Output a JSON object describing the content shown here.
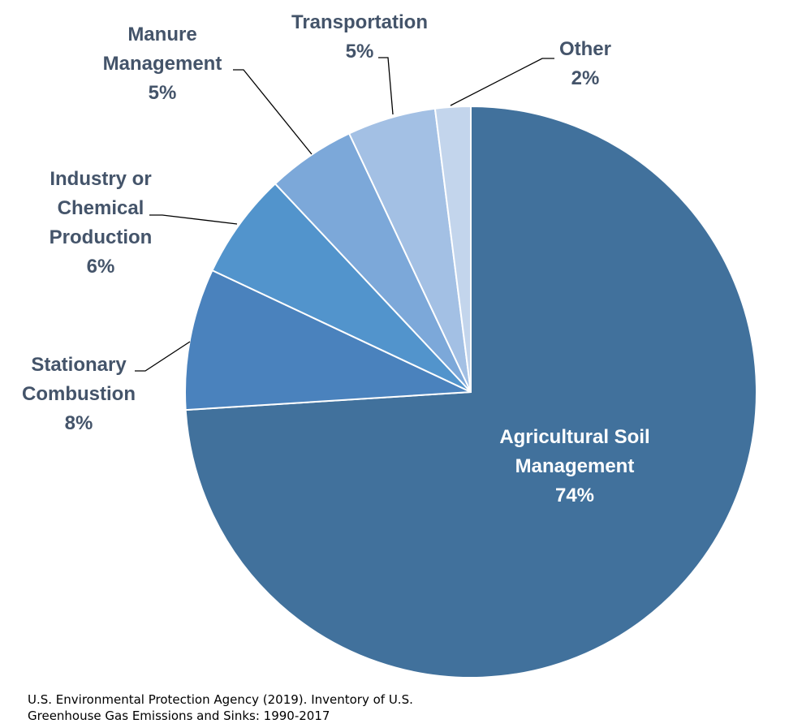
{
  "chart_data": {
    "type": "pie",
    "slices": [
      {
        "label_lines": [
          "Agricultural Soil",
          "Management"
        ],
        "value": 74,
        "value_label": "74%",
        "color": "#41719c"
      },
      {
        "label_lines": [
          "Stationary",
          "Combustion"
        ],
        "value": 8,
        "value_label": "8%",
        "color": "#4a82bd"
      },
      {
        "label_lines": [
          "Industry or",
          "Chemical",
          "Production"
        ],
        "value": 6,
        "value_label": "6%",
        "color": "#5294cc"
      },
      {
        "label_lines": [
          "Manure",
          "Management"
        ],
        "value": 5,
        "value_label": "5%",
        "color": "#7ca8d9"
      },
      {
        "label_lines": [
          "Transportation"
        ],
        "value": 5,
        "value_label": "5%",
        "color": "#a3c0e4"
      },
      {
        "label_lines": [
          "Other"
        ],
        "value": 2,
        "value_label": "2%",
        "color": "#c3d5ec"
      }
    ]
  },
  "source": {
    "line1": "U.S. Environmental Protection Agency (2019). Inventory of U.S.",
    "line2": "Greenhouse Gas Emissions and Sinks: 1990-2017"
  }
}
